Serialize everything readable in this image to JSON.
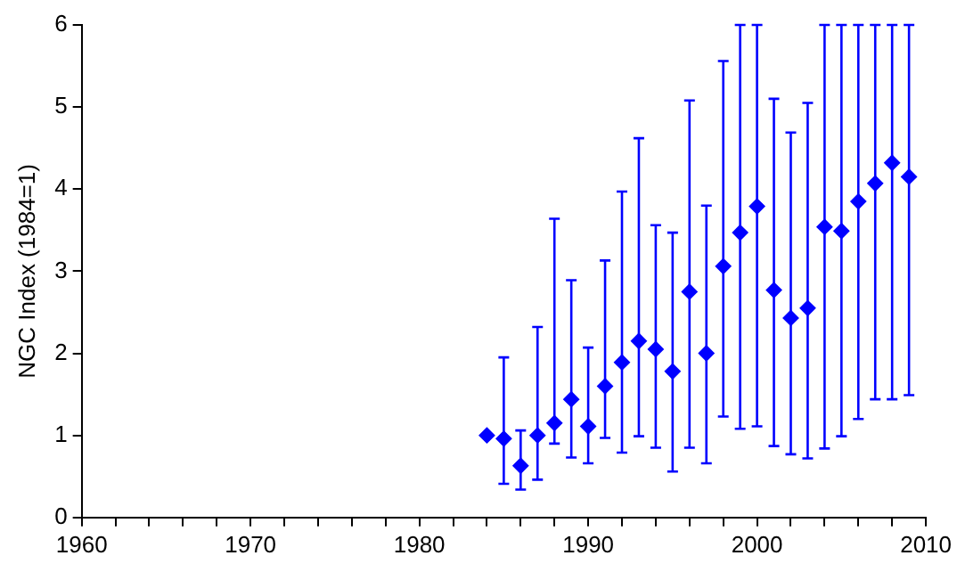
{
  "chart_data": {
    "type": "scatter",
    "ylabel": "NGC Index (1984=1)",
    "x": [
      1984,
      1985,
      1986,
      1987,
      1988,
      1989,
      1990,
      1991,
      1992,
      1993,
      1994,
      1995,
      1996,
      1997,
      1998,
      1999,
      2000,
      2001,
      2002,
      2003,
      2004,
      2005,
      2006,
      2007,
      2008,
      2009
    ],
    "series": [
      {
        "color": "#0000ff",
        "values": [
          1.0,
          0.96,
          0.63,
          1.0,
          1.15,
          1.44,
          1.11,
          1.6,
          1.89,
          2.15,
          2.05,
          1.78,
          2.75,
          2.0,
          3.06,
          3.47,
          3.79,
          2.77,
          2.43,
          2.55,
          3.54,
          3.49,
          3.85,
          4.07,
          4.32,
          4.15
        ],
        "errors": [
          null,
          [
            0.41,
            1.95
          ],
          [
            0.34,
            1.06
          ],
          [
            0.46,
            2.32
          ],
          [
            0.9,
            3.64
          ],
          [
            0.73,
            2.89
          ],
          [
            0.66,
            2.07
          ],
          [
            0.97,
            3.13
          ],
          [
            0.79,
            3.97
          ],
          [
            0.99,
            4.62
          ],
          [
            0.85,
            3.56
          ],
          [
            0.56,
            3.47
          ],
          [
            0.85,
            5.08
          ],
          [
            0.66,
            3.8
          ],
          [
            1.23,
            5.56
          ],
          [
            1.08,
            6
          ],
          [
            1.11,
            6
          ],
          [
            0.87,
            5.1
          ],
          [
            0.77,
            4.69
          ],
          [
            0.72,
            5.05
          ],
          [
            0.84,
            6
          ],
          [
            0.99,
            6
          ],
          [
            1.2,
            6
          ],
          [
            1.44,
            6
          ],
          [
            1.44,
            6
          ],
          [
            1.49,
            6
          ]
        ]
      }
    ],
    "xlim": [
      1960,
      2010
    ],
    "xticks": [
      1960,
      {
        "value": 1962,
        "label": null
      },
      {
        "value": 1964,
        "label": null
      },
      {
        "value": 1966,
        "label": null
      },
      {
        "value": 1968,
        "label": null
      },
      1970,
      {
        "value": 1972,
        "label": null
      },
      {
        "value": 1974,
        "label": null
      },
      {
        "value": 1976,
        "label": null
      },
      {
        "value": 1978,
        "label": null
      },
      1980,
      {
        "value": 1982,
        "label": null
      },
      {
        "value": 1984,
        "label": null
      },
      {
        "value": 1986,
        "label": null
      },
      {
        "value": 1988,
        "label": null
      },
      1990,
      {
        "value": 1992,
        "label": null
      },
      {
        "value": 1994,
        "label": null
      },
      {
        "value": 1996,
        "label": null
      },
      {
        "value": 1998,
        "label": null
      },
      2000,
      {
        "value": 2002,
        "label": null
      },
      {
        "value": 2004,
        "label": null
      },
      {
        "value": 2006,
        "label": null
      },
      {
        "value": 2008,
        "label": null
      },
      2010
    ],
    "ylim": [
      0,
      6
    ],
    "yticks": [
      0,
      1,
      2,
      3,
      4,
      5,
      6
    ],
    "grid": false,
    "legend": false,
    "marker": "diamond"
  }
}
